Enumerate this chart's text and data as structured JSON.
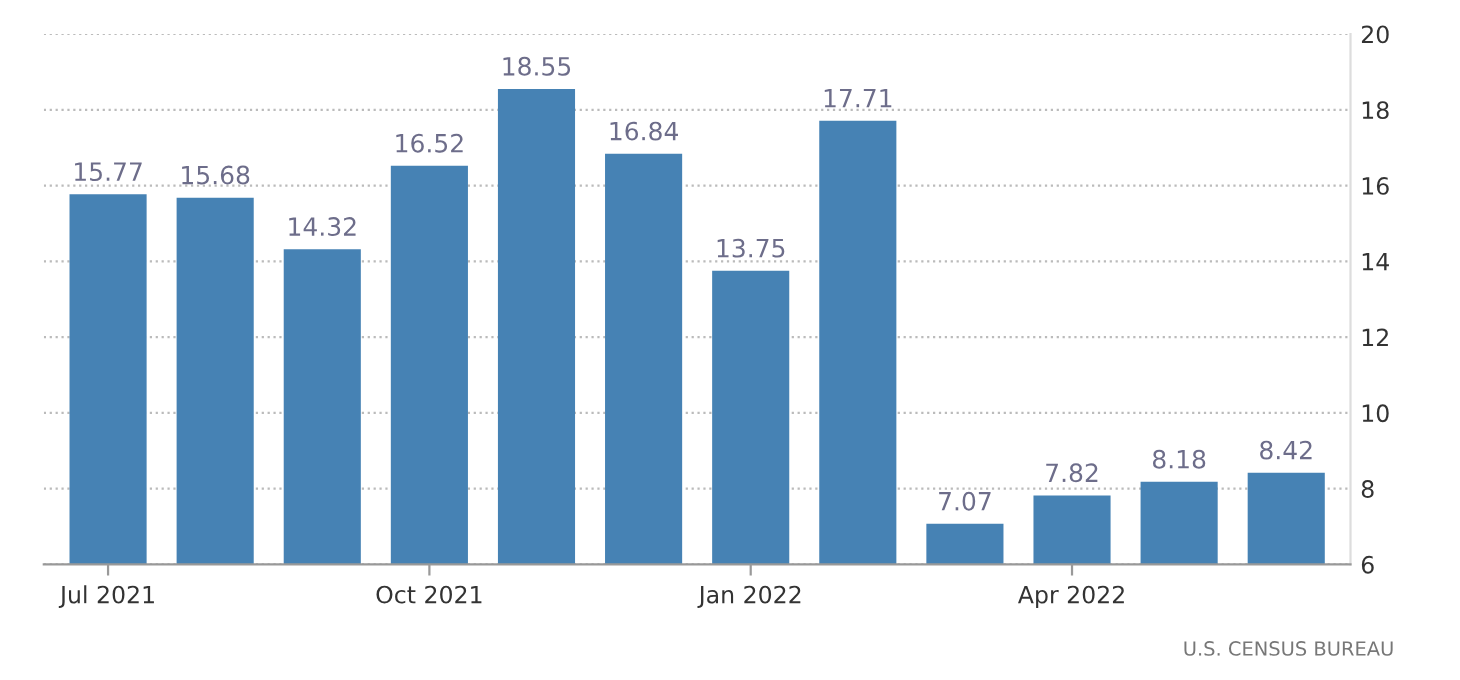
{
  "chart_data": {
    "type": "bar",
    "categories": [
      "Jul 2021",
      null,
      null,
      "Oct 2021",
      null,
      null,
      "Jan 2022",
      null,
      null,
      "Apr 2022",
      null,
      null
    ],
    "values": [
      15.77,
      15.68,
      14.32,
      16.52,
      18.55,
      16.84,
      13.75,
      17.71,
      7.07,
      7.82,
      8.18,
      8.42
    ],
    "color": "#4682b4",
    "ylim": [
      6,
      20
    ],
    "yticks": [
      6,
      8,
      10,
      12,
      14,
      16,
      18,
      20
    ],
    "grid": "y",
    "data_labels": true,
    "annotations": [
      "U.S. CENSUS BUREAU"
    ]
  }
}
